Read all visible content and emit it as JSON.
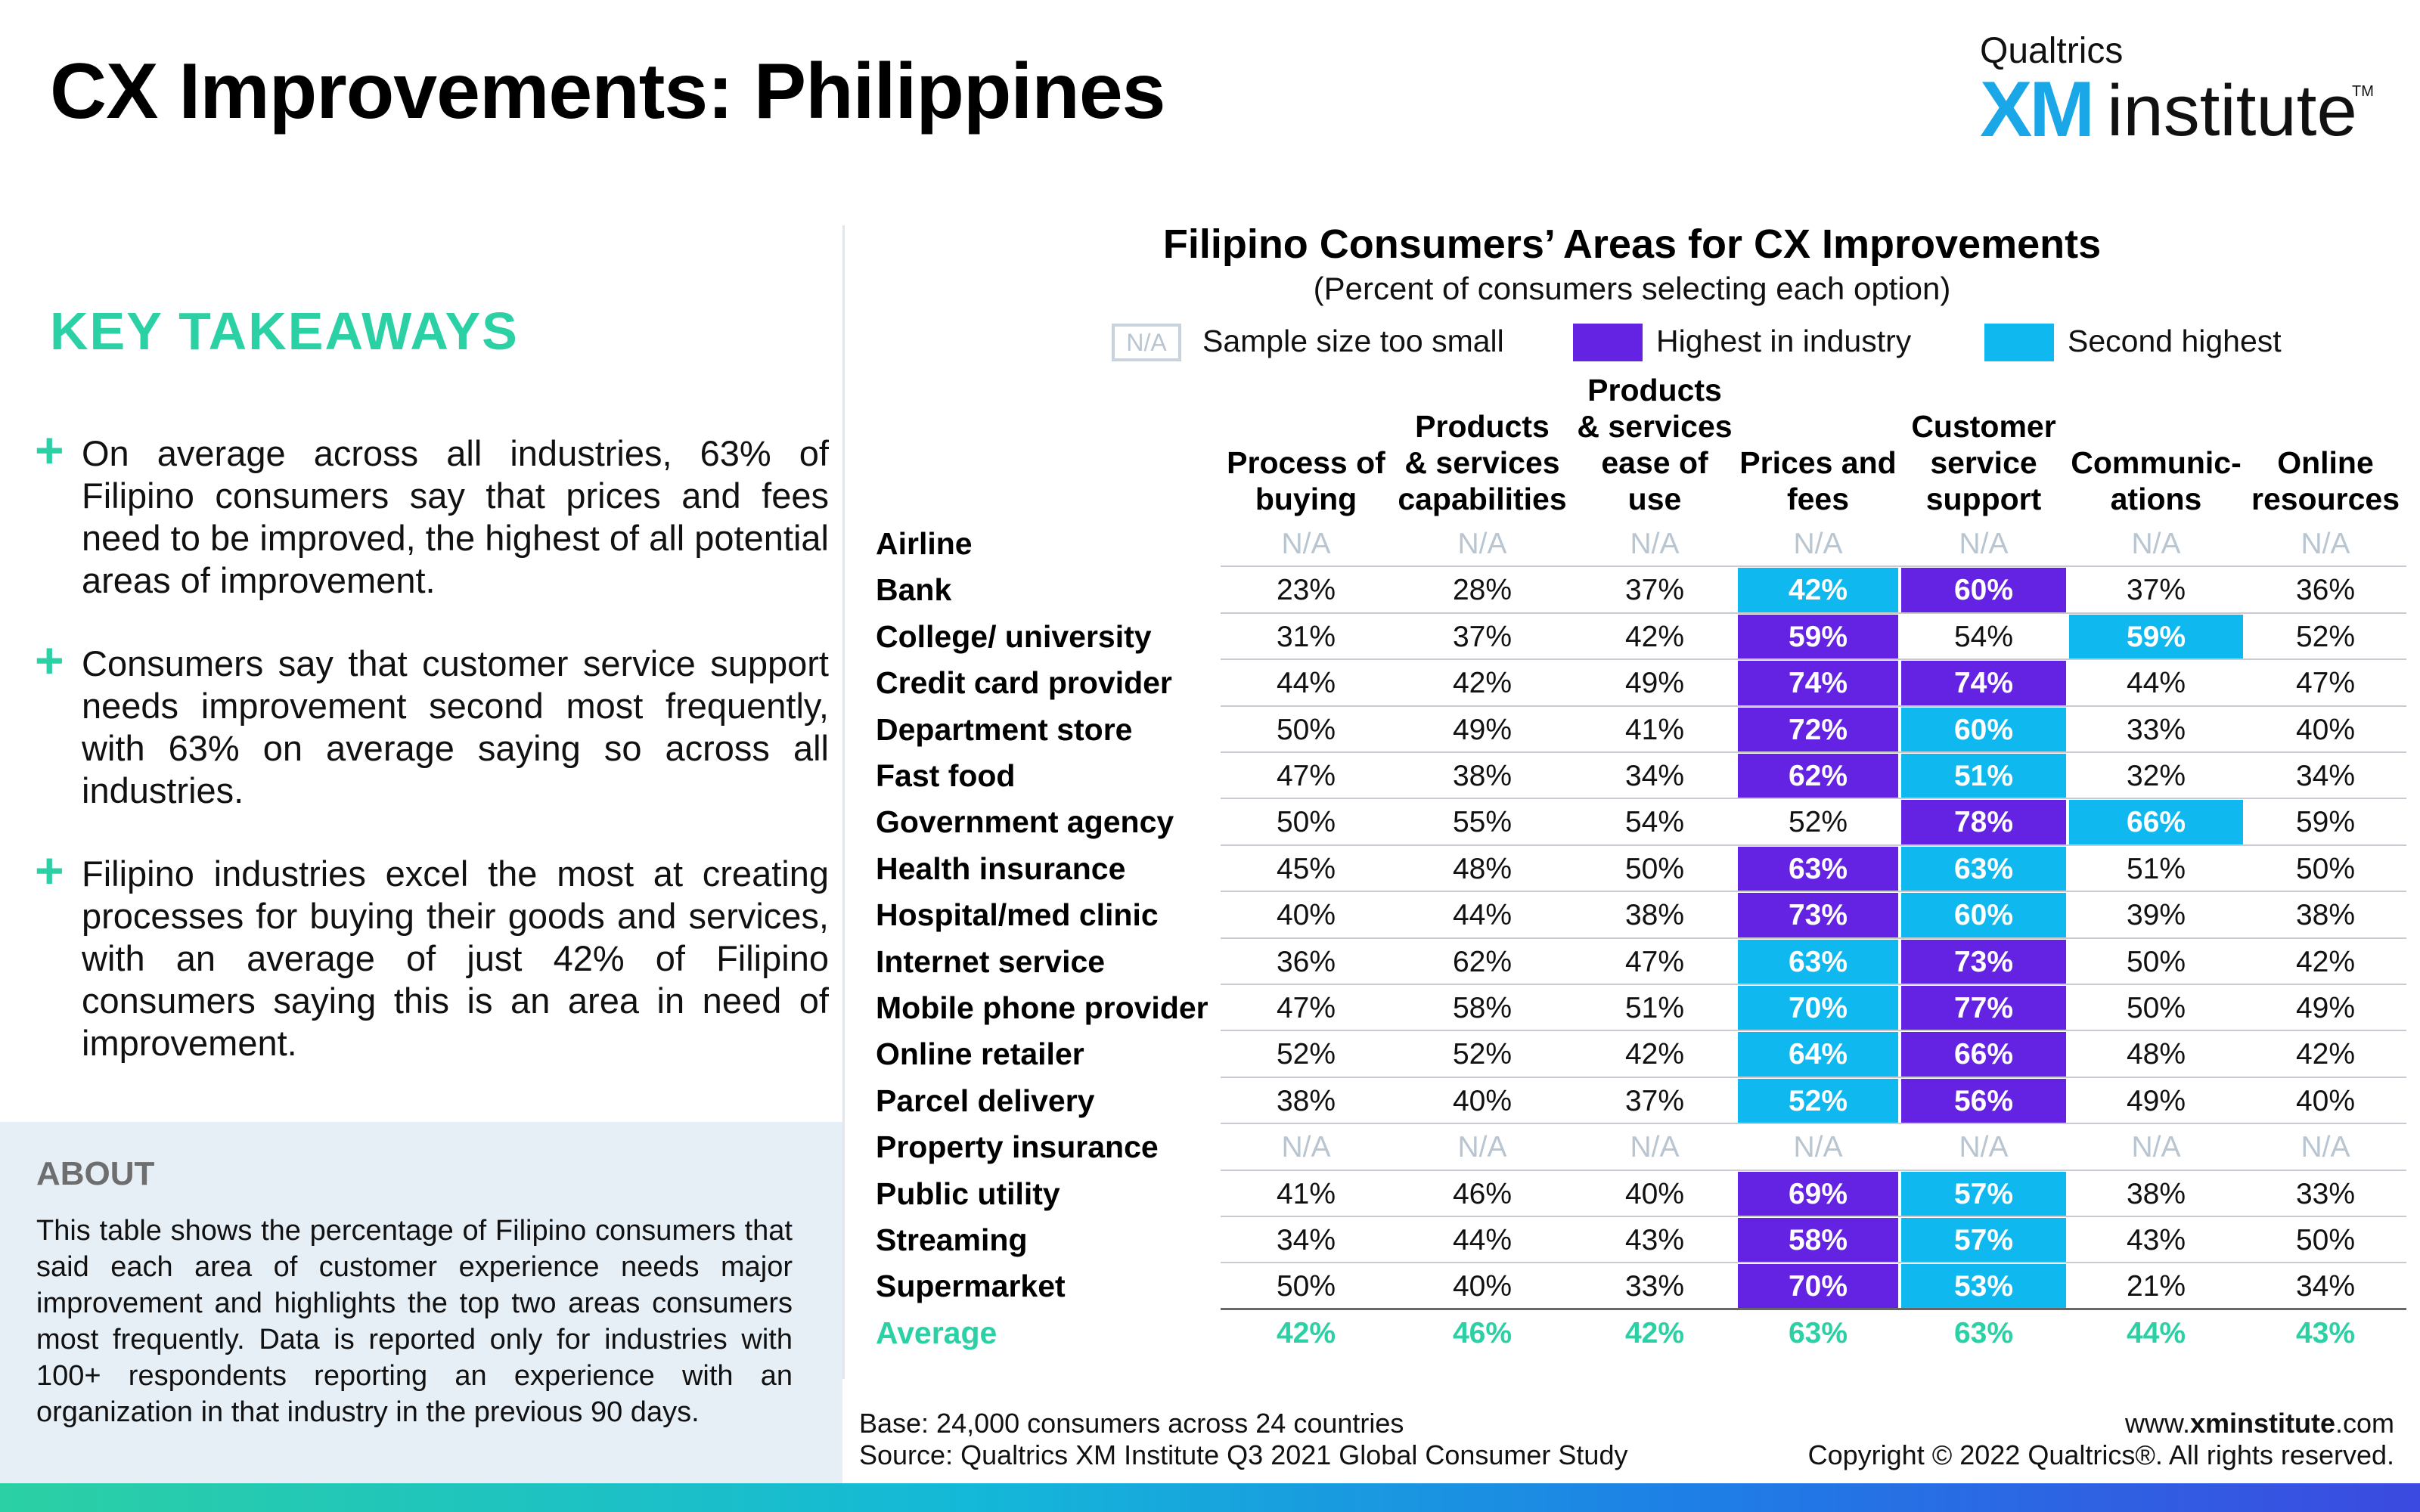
{
  "page": {
    "title": "CX Improvements: Philippines",
    "logo_top": "Qualtrics",
    "logo_xm": "XM",
    "logo_institute": "institute",
    "logo_tm": "TM"
  },
  "takeaways": {
    "heading": "KEY TAKEAWAYS",
    "plus": "+",
    "items": [
      "On average across all industries, 63% of Filipino consumers say that prices and fees need to be improved, the highest of all potential areas of improvement.",
      "Consumers say that customer service support needs improvement second most frequently, with 63% on average saying so across all industries.",
      "Filipino industries excel the most at creating processes for buying their goods and services, with an average of just 42% of Filipino consumers saying this is an area in need of improvement."
    ]
  },
  "about": {
    "heading": "ABOUT",
    "text": "This table shows the percentage of Filipino consumers that said each area of customer experience needs major improvement and highlights the top two areas consumers most frequently. Data is reported only for industries with 100+ respondents reporting an experience with an organization in that industry in the previous 90 days."
  },
  "colors": {
    "highest": "#6422e2",
    "second": "#0fb8ee",
    "accent": "#2bd0a4"
  },
  "chart_data": {
    "type": "table",
    "title": "Filipino Consumers’ Areas for CX Improvements",
    "subtitle": "(Percent of consumers selecting each option)",
    "legend": {
      "na_swatch": "N/A",
      "na_label": "Sample size too small",
      "highest_label": "Highest in industry",
      "second_label": "Second highest"
    },
    "columns": [
      [
        "Process of",
        "buying"
      ],
      [
        "Products",
        "& services",
        "capabilities"
      ],
      [
        "Products",
        "& services",
        "ease of",
        "use"
      ],
      [
        "Prices and",
        "fees"
      ],
      [
        "Customer",
        "service",
        "support"
      ],
      [
        "Communic-",
        "ations"
      ],
      [
        "Online",
        "resources"
      ]
    ],
    "rows": [
      {
        "label": "Airline",
        "values": [
          "N/A",
          "N/A",
          "N/A",
          "N/A",
          "N/A",
          "N/A",
          "N/A"
        ],
        "highlight": [
          0,
          0,
          0,
          0,
          0,
          0,
          0
        ]
      },
      {
        "label": "Bank",
        "values": [
          "23%",
          "28%",
          "37%",
          "42%",
          "60%",
          "37%",
          "36%"
        ],
        "highlight": [
          0,
          0,
          0,
          2,
          1,
          0,
          0
        ]
      },
      {
        "label": "College/ university",
        "values": [
          "31%",
          "37%",
          "42%",
          "59%",
          "54%",
          "59%",
          "52%"
        ],
        "highlight": [
          0,
          0,
          0,
          1,
          0,
          2,
          0
        ]
      },
      {
        "label": "Credit card provider",
        "values": [
          "44%",
          "42%",
          "49%",
          "74%",
          "74%",
          "44%",
          "47%"
        ],
        "highlight": [
          0,
          0,
          0,
          1,
          1,
          0,
          0
        ]
      },
      {
        "label": "Department store",
        "values": [
          "50%",
          "49%",
          "41%",
          "72%",
          "60%",
          "33%",
          "40%"
        ],
        "highlight": [
          0,
          0,
          0,
          1,
          2,
          0,
          0
        ]
      },
      {
        "label": "Fast food",
        "values": [
          "47%",
          "38%",
          "34%",
          "62%",
          "51%",
          "32%",
          "34%"
        ],
        "highlight": [
          0,
          0,
          0,
          1,
          2,
          0,
          0
        ]
      },
      {
        "label": "Government agency",
        "values": [
          "50%",
          "55%",
          "54%",
          "52%",
          "78%",
          "66%",
          "59%"
        ],
        "highlight": [
          0,
          0,
          0,
          0,
          1,
          2,
          0
        ]
      },
      {
        "label": "Health insurance",
        "values": [
          "45%",
          "48%",
          "50%",
          "63%",
          "63%",
          "51%",
          "50%"
        ],
        "highlight": [
          0,
          0,
          0,
          1,
          2,
          0,
          0
        ]
      },
      {
        "label": "Hospital/med clinic",
        "values": [
          "40%",
          "44%",
          "38%",
          "73%",
          "60%",
          "39%",
          "38%"
        ],
        "highlight": [
          0,
          0,
          0,
          1,
          2,
          0,
          0
        ]
      },
      {
        "label": "Internet service",
        "values": [
          "36%",
          "62%",
          "47%",
          "63%",
          "73%",
          "50%",
          "42%"
        ],
        "highlight": [
          0,
          0,
          0,
          2,
          1,
          0,
          0
        ]
      },
      {
        "label": "Mobile phone provider",
        "values": [
          "47%",
          "58%",
          "51%",
          "70%",
          "77%",
          "50%",
          "49%"
        ],
        "highlight": [
          0,
          0,
          0,
          2,
          1,
          0,
          0
        ]
      },
      {
        "label": "Online retailer",
        "values": [
          "52%",
          "52%",
          "42%",
          "64%",
          "66%",
          "48%",
          "42%"
        ],
        "highlight": [
          0,
          0,
          0,
          2,
          1,
          0,
          0
        ]
      },
      {
        "label": "Parcel delivery",
        "values": [
          "38%",
          "40%",
          "37%",
          "52%",
          "56%",
          "49%",
          "40%"
        ],
        "highlight": [
          0,
          0,
          0,
          2,
          1,
          0,
          0
        ]
      },
      {
        "label": "Property insurance",
        "values": [
          "N/A",
          "N/A",
          "N/A",
          "N/A",
          "N/A",
          "N/A",
          "N/A"
        ],
        "highlight": [
          0,
          0,
          0,
          0,
          0,
          0,
          0
        ]
      },
      {
        "label": "Public utility",
        "values": [
          "41%",
          "46%",
          "40%",
          "69%",
          "57%",
          "38%",
          "33%"
        ],
        "highlight": [
          0,
          0,
          0,
          1,
          2,
          0,
          0
        ]
      },
      {
        "label": "Streaming",
        "values": [
          "34%",
          "44%",
          "43%",
          "58%",
          "57%",
          "43%",
          "50%"
        ],
        "highlight": [
          0,
          0,
          0,
          1,
          2,
          0,
          0
        ]
      },
      {
        "label": "Supermarket",
        "values": [
          "50%",
          "40%",
          "33%",
          "70%",
          "53%",
          "21%",
          "34%"
        ],
        "highlight": [
          0,
          0,
          0,
          1,
          2,
          0,
          0
        ]
      }
    ],
    "average": {
      "label": "Average",
      "values": [
        "42%",
        "46%",
        "42%",
        "63%",
        "63%",
        "44%",
        "43%"
      ]
    }
  },
  "footer": {
    "base": "Base: 24,000 consumers across 24 countries",
    "source": "Source: Qualtrics XM Institute Q3 2021 Global Consumer Study",
    "url_pre": "www.",
    "url_bold": "xminstitute",
    "url_post": ".com",
    "copyright": "Copyright © 2022 Qualtrics®. All rights reserved."
  }
}
